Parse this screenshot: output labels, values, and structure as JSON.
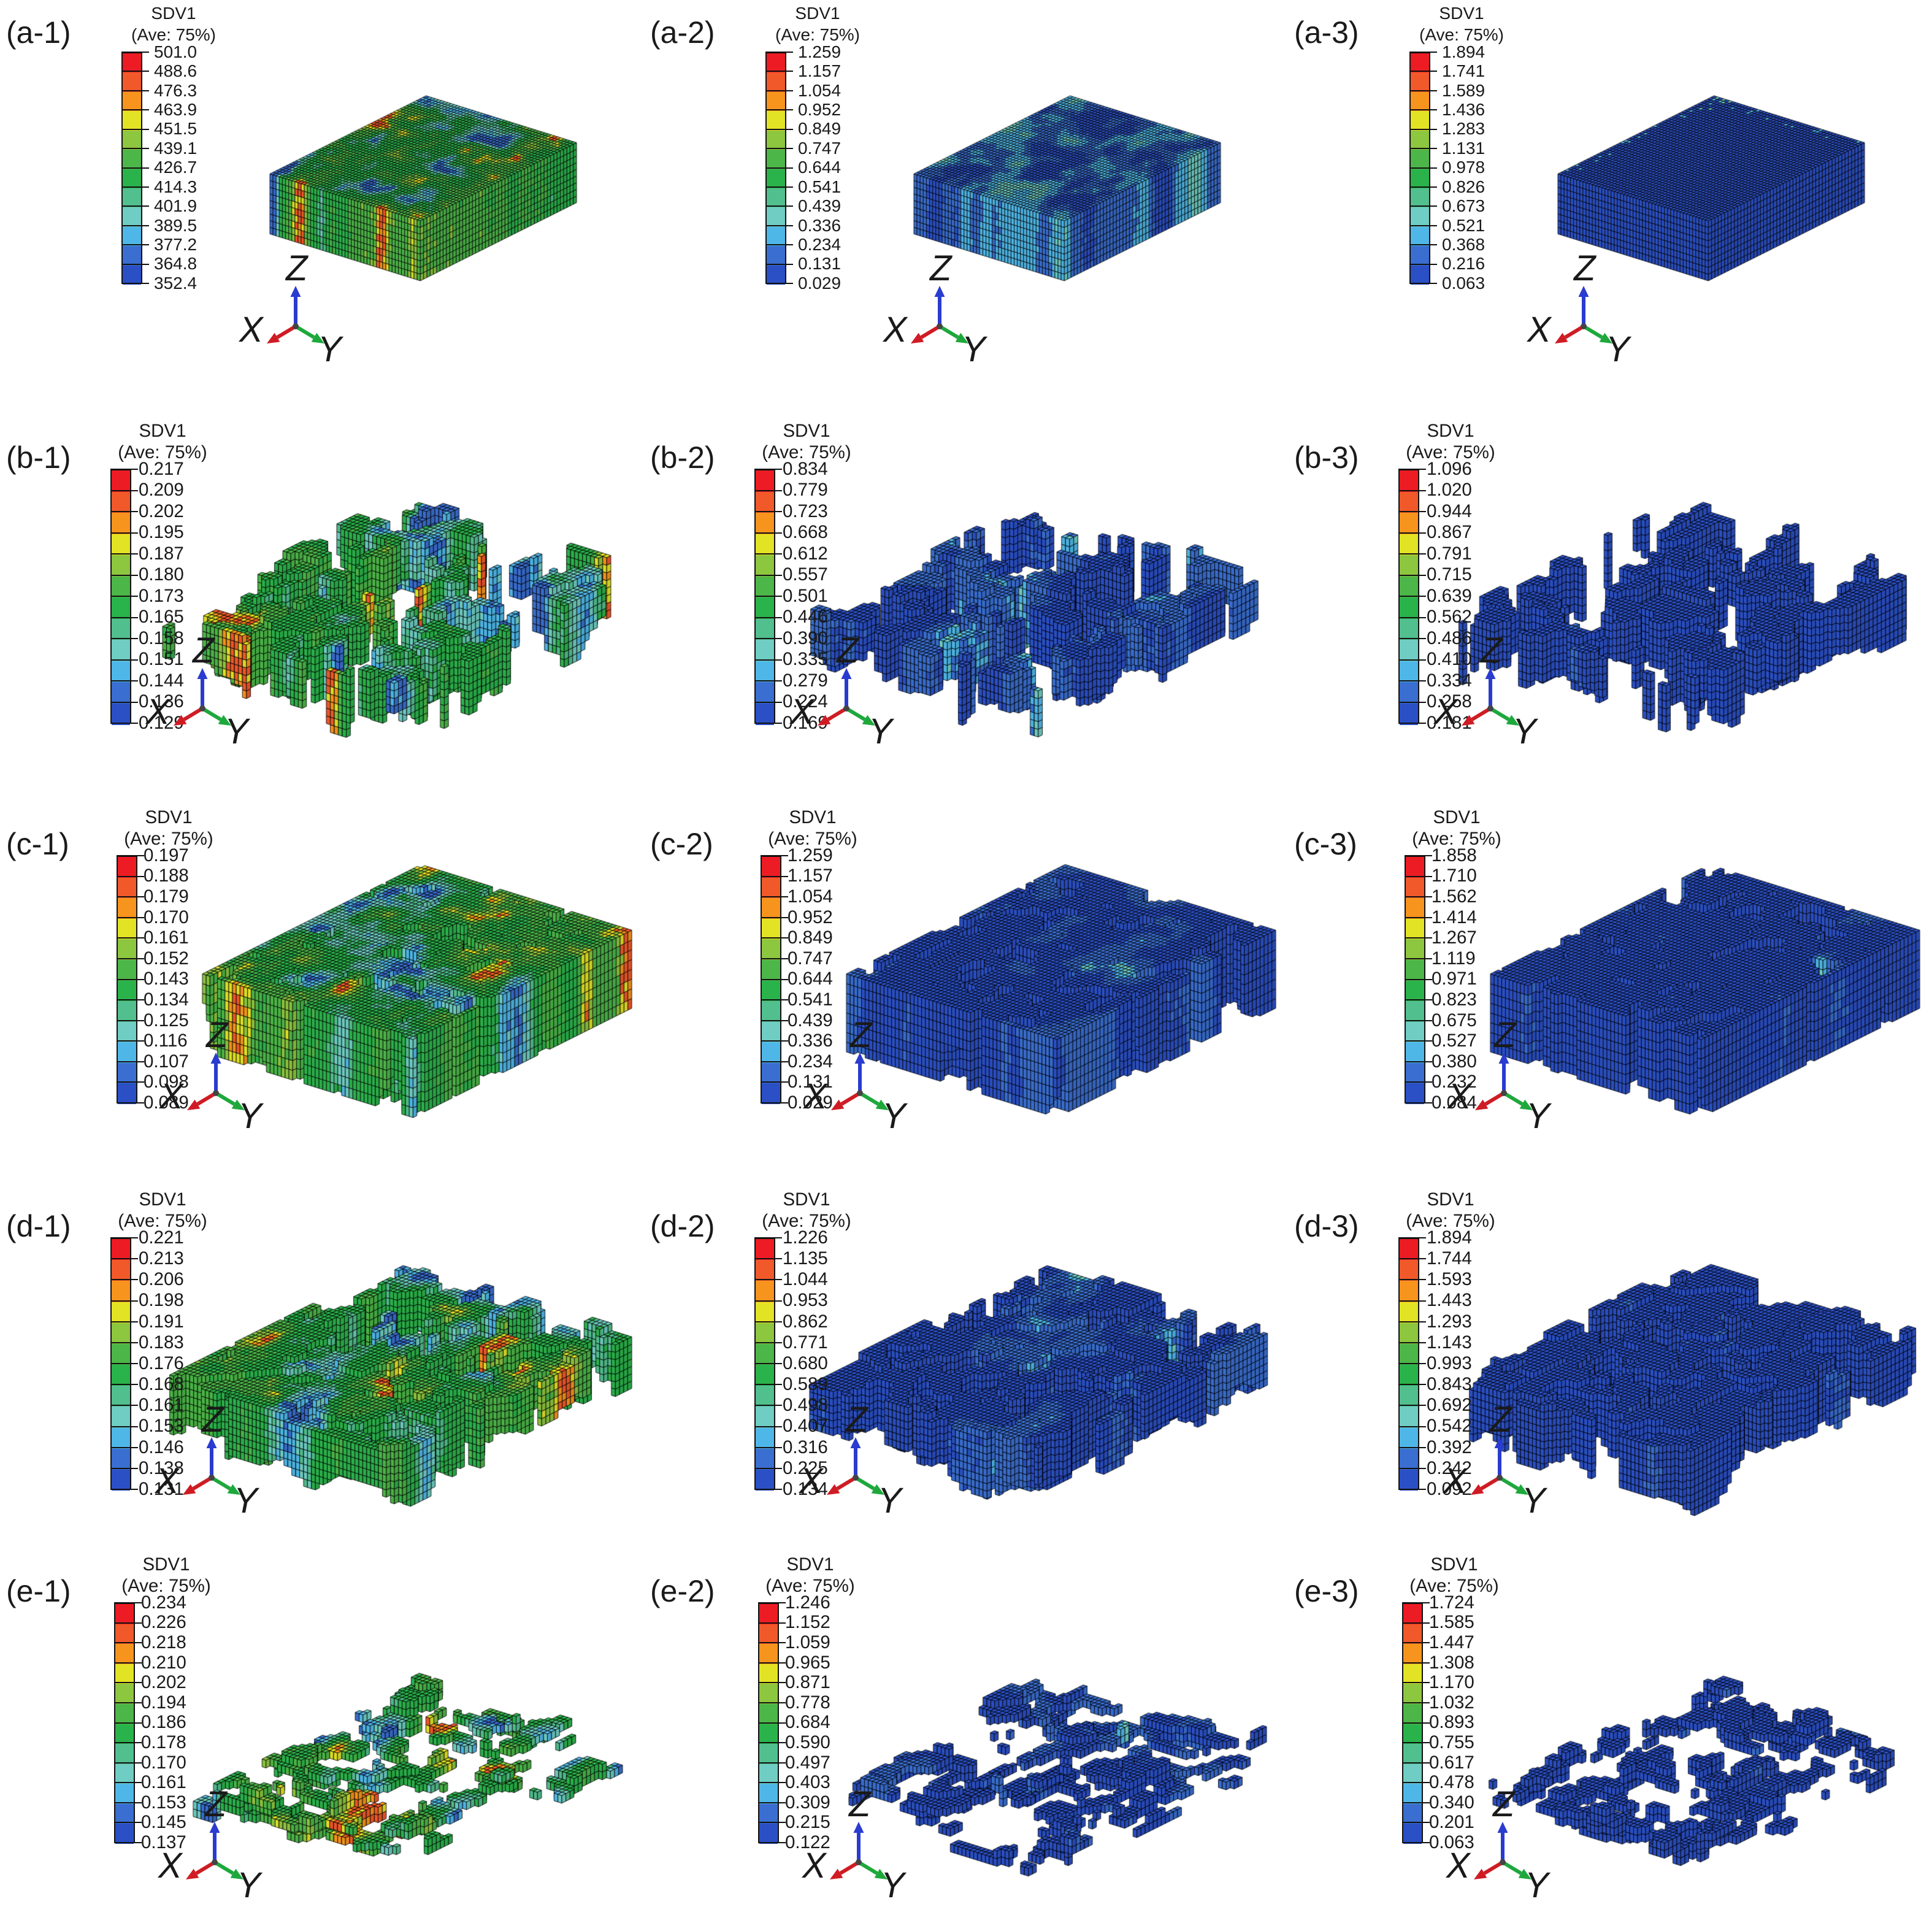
{
  "legend_title": "SDV1",
  "legend_subtitle": "(Ave: 75%)",
  "axis": {
    "x": "X",
    "y": "Y",
    "z": "Z"
  },
  "spectrum": [
    "#ed1c24",
    "#f1592a",
    "#f7941d",
    "#e3e325",
    "#8dc63f",
    "#4cb648",
    "#2bb34b",
    "#52bf8e",
    "#6fcdc3",
    "#4fb7e8",
    "#3a6ed0",
    "#2b50c5"
  ],
  "panels": [
    {
      "id": "a-1",
      "label": "(a-1)",
      "structure": "solid-slab",
      "palette": "green-mottled",
      "values": [
        "501.0",
        "488.6",
        "476.3",
        "463.9",
        "451.5",
        "439.1",
        "426.7",
        "414.3",
        "401.9",
        "389.5",
        "377.2",
        "364.8",
        "352.4"
      ]
    },
    {
      "id": "a-2",
      "label": "(a-2)",
      "structure": "solid-slab",
      "palette": "blue-cyan-mottled",
      "values": [
        "1.259",
        "1.157",
        "1.054",
        "0.952",
        "0.849",
        "0.747",
        "0.644",
        "0.541",
        "0.439",
        "0.336",
        "0.234",
        "0.131",
        "0.029"
      ]
    },
    {
      "id": "a-3",
      "label": "(a-3)",
      "structure": "solid-slab",
      "palette": "dark-blue-uniform",
      "values": [
        "1.894",
        "1.741",
        "1.589",
        "1.436",
        "1.283",
        "1.131",
        "0.978",
        "0.826",
        "0.673",
        "0.521",
        "0.368",
        "0.216",
        "0.063"
      ]
    },
    {
      "id": "b-1",
      "label": "(b-1)",
      "structure": "scattered-pillars",
      "palette": "green-mottled",
      "values": [
        "0.217",
        "0.209",
        "0.202",
        "0.195",
        "0.187",
        "0.180",
        "0.173",
        "0.165",
        "0.158",
        "0.151",
        "0.144",
        "0.136",
        "0.129"
      ]
    },
    {
      "id": "b-2",
      "label": "(b-2)",
      "structure": "scattered-pillars",
      "palette": "deep-blue",
      "values": [
        "0.834",
        "0.779",
        "0.723",
        "0.668",
        "0.612",
        "0.557",
        "0.501",
        "0.446",
        "0.390",
        "0.335",
        "0.279",
        "0.224",
        "0.169"
      ]
    },
    {
      "id": "b-3",
      "label": "(b-3)",
      "structure": "scattered-pillars",
      "palette": "dark-blue",
      "values": [
        "1.096",
        "1.020",
        "0.944",
        "0.867",
        "0.791",
        "0.715",
        "0.639",
        "0.562",
        "0.486",
        "0.410",
        "0.334",
        "0.258",
        "0.181"
      ]
    },
    {
      "id": "c-1",
      "label": "(c-1)",
      "structure": "porous-slab",
      "palette": "green-mottled",
      "values": [
        "0.197",
        "0.188",
        "0.179",
        "0.170",
        "0.161",
        "0.152",
        "0.143",
        "0.134",
        "0.125",
        "0.116",
        "0.107",
        "0.098",
        "0.089"
      ]
    },
    {
      "id": "c-2",
      "label": "(c-2)",
      "structure": "porous-slab",
      "palette": "deep-blue",
      "values": [
        "1.259",
        "1.157",
        "1.054",
        "0.952",
        "0.849",
        "0.747",
        "0.644",
        "0.541",
        "0.439",
        "0.336",
        "0.234",
        "0.131",
        "0.029"
      ]
    },
    {
      "id": "c-3",
      "label": "(c-3)",
      "structure": "porous-slab",
      "palette": "dark-blue",
      "values": [
        "1.858",
        "1.710",
        "1.562",
        "1.414",
        "1.267",
        "1.119",
        "0.971",
        "0.823",
        "0.675",
        "0.527",
        "0.380",
        "0.232",
        "0.084"
      ]
    },
    {
      "id": "d-1",
      "label": "(d-1)",
      "structure": "dense-blocks",
      "palette": "green-mottled",
      "values": [
        "0.221",
        "0.213",
        "0.206",
        "0.198",
        "0.191",
        "0.183",
        "0.176",
        "0.168",
        "0.161",
        "0.153",
        "0.146",
        "0.138",
        "0.131"
      ]
    },
    {
      "id": "d-2",
      "label": "(d-2)",
      "structure": "dense-blocks",
      "palette": "deep-blue",
      "values": [
        "1.226",
        "1.135",
        "1.044",
        "0.953",
        "0.862",
        "0.771",
        "0.680",
        "0.589",
        "0.498",
        "0.407",
        "0.316",
        "0.225",
        "0.134"
      ]
    },
    {
      "id": "d-3",
      "label": "(d-3)",
      "structure": "dense-blocks",
      "palette": "dark-blue",
      "values": [
        "1.894",
        "1.744",
        "1.593",
        "1.443",
        "1.293",
        "1.143",
        "0.993",
        "0.843",
        "0.692",
        "0.542",
        "0.392",
        "0.242",
        "0.092"
      ]
    },
    {
      "id": "e-1",
      "label": "(e-1)",
      "structure": "thin-platelets",
      "palette": "green-mottled",
      "values": [
        "0.234",
        "0.226",
        "0.218",
        "0.210",
        "0.202",
        "0.194",
        "0.186",
        "0.178",
        "0.170",
        "0.161",
        "0.153",
        "0.145",
        "0.137"
      ]
    },
    {
      "id": "e-2",
      "label": "(e-2)",
      "structure": "thin-platelets",
      "palette": "deep-blue",
      "values": [
        "1.246",
        "1.152",
        "1.059",
        "0.965",
        "0.871",
        "0.778",
        "0.684",
        "0.590",
        "0.497",
        "0.403",
        "0.309",
        "0.215",
        "0.122"
      ]
    },
    {
      "id": "e-3",
      "label": "(e-3)",
      "structure": "thin-platelets",
      "palette": "dark-blue",
      "values": [
        "1.724",
        "1.585",
        "1.447",
        "1.308",
        "1.170",
        "1.032",
        "0.893",
        "0.755",
        "0.617",
        "0.478",
        "0.340",
        "0.201",
        "0.063"
      ]
    }
  ]
}
